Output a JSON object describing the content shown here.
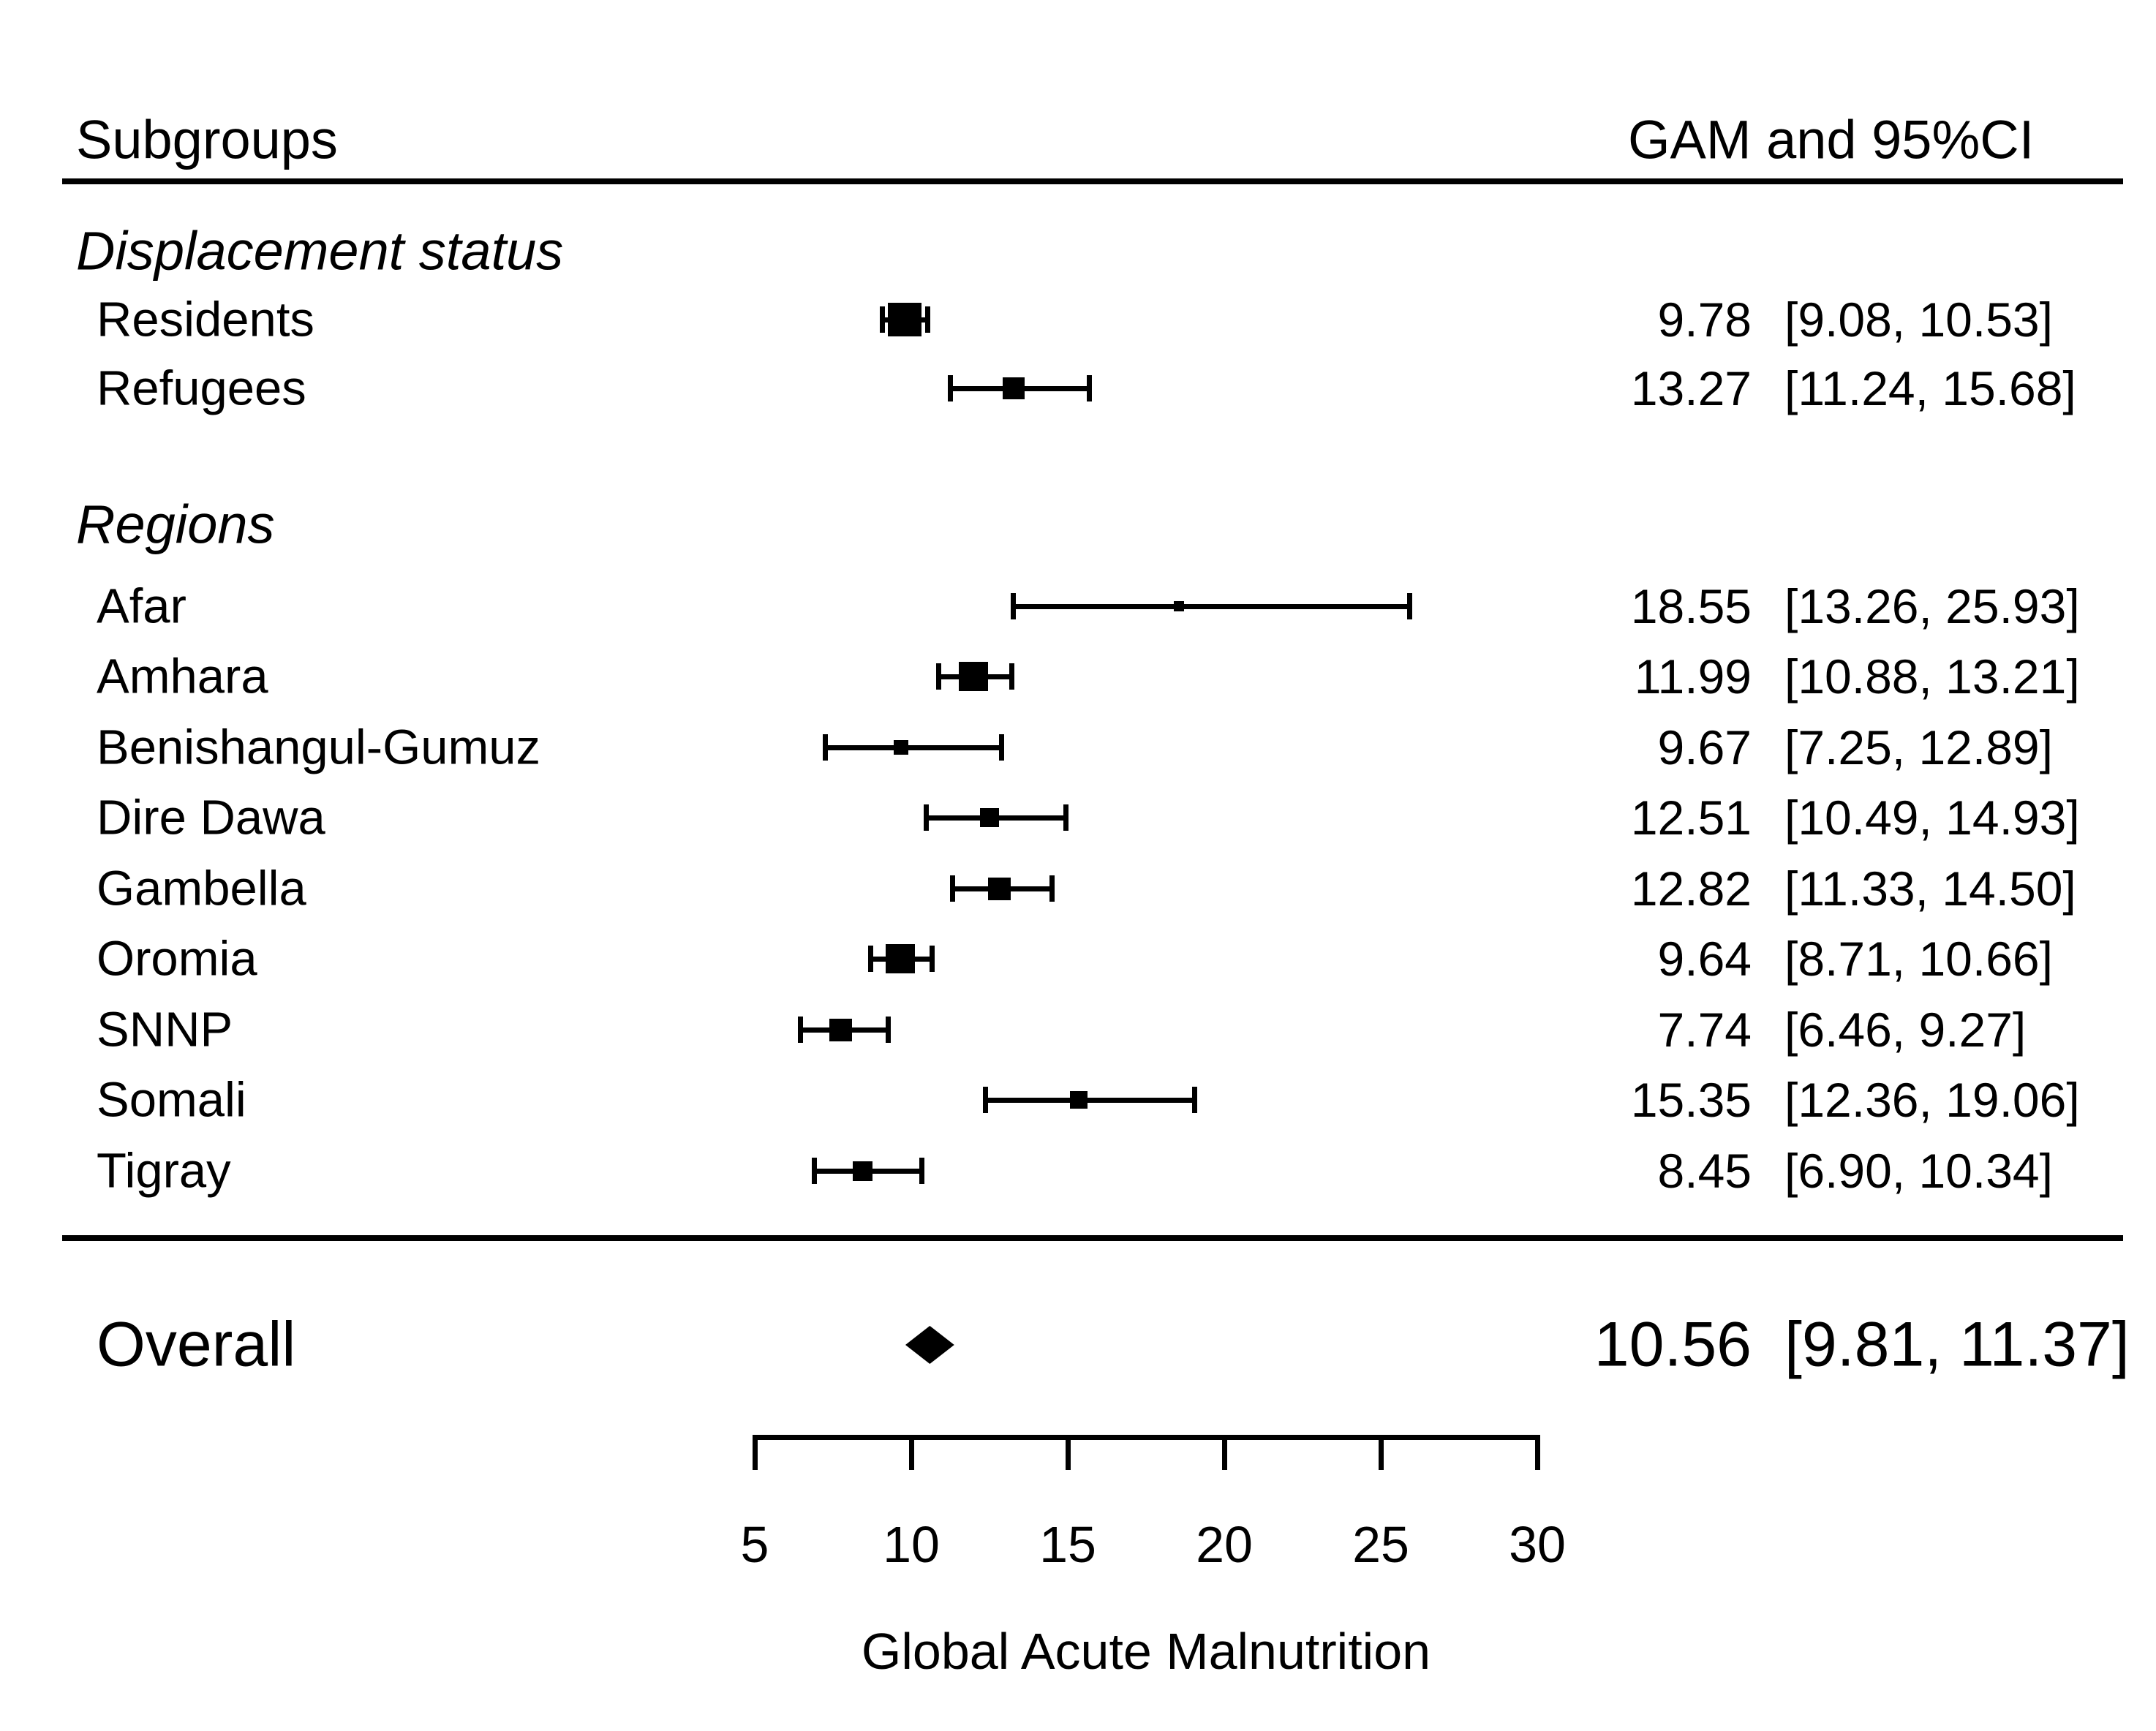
{
  "title_row": {
    "left": "Subgroups",
    "right": "GAM and 95%CI"
  },
  "chart_data": {
    "type": "forest",
    "title": "",
    "xlabel": "Global Acute Malnutrition",
    "x_ticks": [
      "5",
      "10",
      "15",
      "20",
      "25",
      "30"
    ],
    "xlim": [
      5,
      30
    ],
    "grid": false,
    "value_column_header": "GAM and 95%CI",
    "label_column_header": "Subgroups",
    "groups": [
      {
        "label": "Displacement status",
        "items": [
          {
            "label": "Residents",
            "est": 9.78,
            "lo": 9.08,
            "hi": 10.53,
            "est_text": "9.78",
            "ci_text": "[9.08, 10.53]",
            "marker": 46
          },
          {
            "label": "Refugees",
            "est": 13.27,
            "lo": 11.24,
            "hi": 15.68,
            "est_text": "13.27",
            "ci_text": "[11.24, 15.68]",
            "marker": 30
          }
        ]
      },
      {
        "label": "Regions",
        "items": [
          {
            "label": "Afar",
            "est": 18.55,
            "lo": 13.26,
            "hi": 25.93,
            "est_text": "18.55",
            "ci_text": "[13.26, 25.93]",
            "marker": 14
          },
          {
            "label": "Amhara",
            "est": 11.99,
            "lo": 10.88,
            "hi": 13.21,
            "est_text": "11.99",
            "ci_text": "[10.88, 13.21]",
            "marker": 40
          },
          {
            "label": "Benishangul-Gumuz",
            "est": 9.67,
            "lo": 7.25,
            "hi": 12.89,
            "est_text": "9.67",
            "ci_text": "[7.25, 12.89]",
            "marker": 20
          },
          {
            "label": "Dire Dawa",
            "est": 12.51,
            "lo": 10.49,
            "hi": 14.93,
            "est_text": "12.51",
            "ci_text": "[10.49, 14.93]",
            "marker": 26
          },
          {
            "label": "Gambella",
            "est": 12.82,
            "lo": 11.33,
            "hi": 14.5,
            "est_text": "12.82",
            "ci_text": "[11.33, 14.50]",
            "marker": 31
          },
          {
            "label": "Oromia",
            "est": 9.64,
            "lo": 8.71,
            "hi": 10.66,
            "est_text": "9.64",
            "ci_text": "[8.71, 10.66]",
            "marker": 40
          },
          {
            "label": "SNNP",
            "est": 7.74,
            "lo": 6.46,
            "hi": 9.27,
            "est_text": "7.74",
            "ci_text": "[6.46, 9.27]",
            "marker": 31
          },
          {
            "label": "Somali",
            "est": 15.35,
            "lo": 12.36,
            "hi": 19.06,
            "est_text": "15.35",
            "ci_text": "[12.36, 19.06]",
            "marker": 24
          },
          {
            "label": "Tigray",
            "est": 8.45,
            "lo": 6.9,
            "hi": 10.34,
            "est_text": "8.45",
            "ci_text": "[6.90, 10.34]",
            "marker": 27
          }
        ]
      }
    ],
    "overall": {
      "label": "Overall",
      "est": 10.56,
      "lo": 9.81,
      "hi": 11.37,
      "est_text": "10.56",
      "ci_text": "[9.81, 11.37]"
    },
    "colors": {
      "foreground": "#000000",
      "background": "#ffffff"
    }
  }
}
